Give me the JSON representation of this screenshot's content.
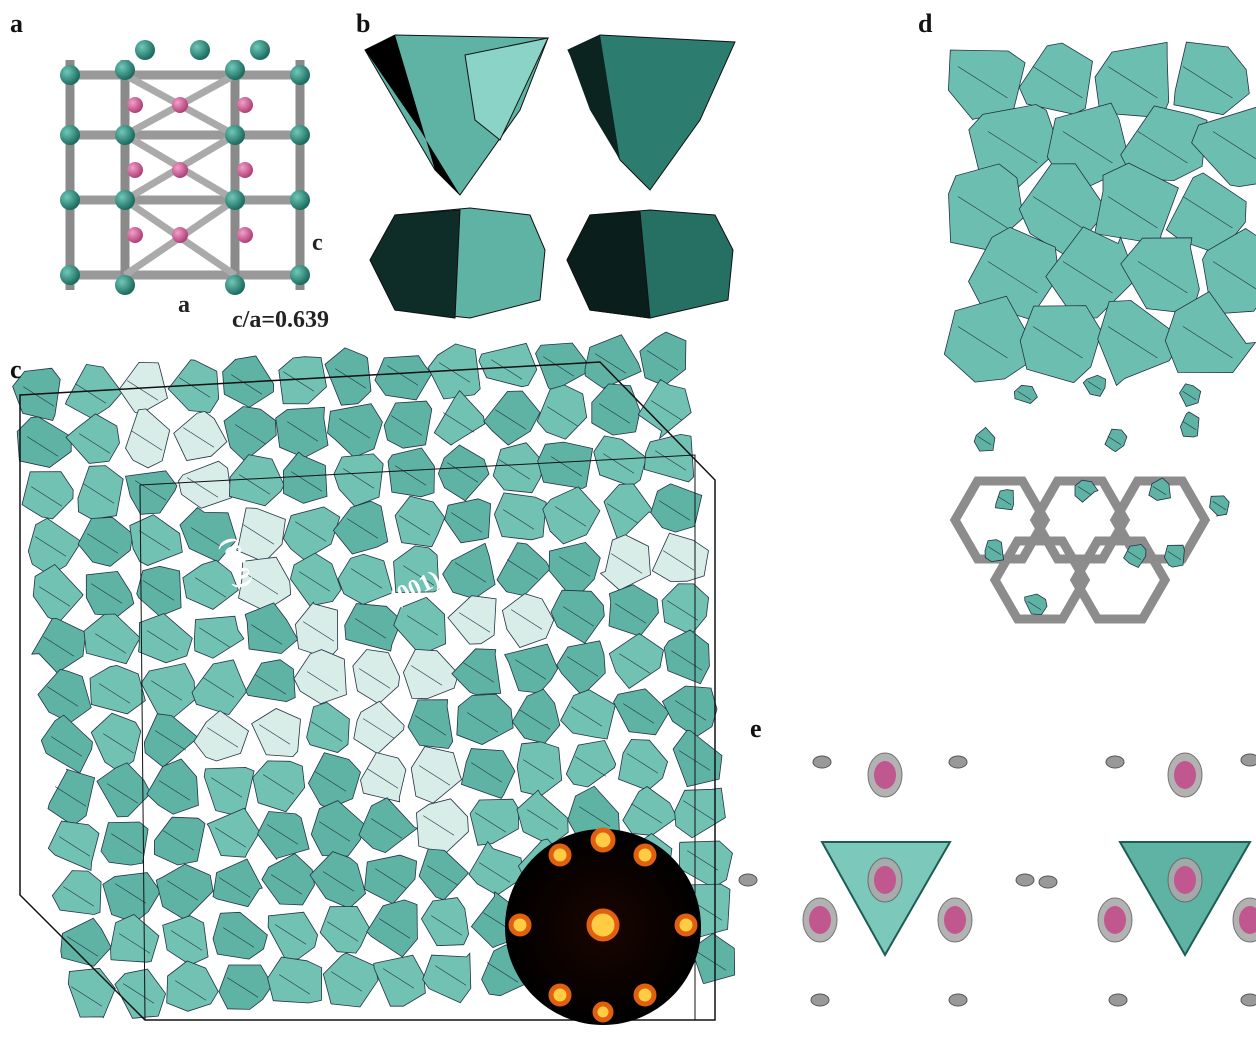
{
  "panels": [
    {
      "label": "a",
      "annotations": [
        "c",
        "a",
        "c/a=0.639"
      ]
    },
    {
      "label": "b"
    },
    {
      "label": "c",
      "annotations": [
        "(010)",
        "(001)"
      ]
    },
    {
      "label": "d"
    },
    {
      "label": "e"
    }
  ]
}
